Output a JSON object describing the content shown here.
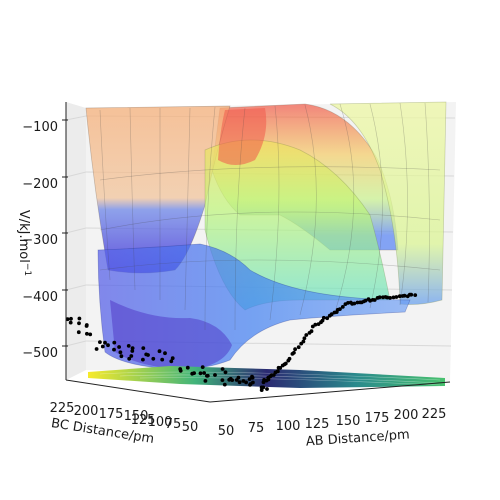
{
  "chart_data": {
    "type": "surface-3d",
    "xlabel": "AB Distance/pm",
    "ylabel": "BC Distance/pm",
    "zlabel": "V/kJ.mol$^{-1}$",
    "zlabel_display": "V/kJ.mol",
    "zlabel_superscript": "−1",
    "x_ticks": [
      "50",
      "75",
      "100",
      "125",
      "150",
      "175",
      "200",
      "225"
    ],
    "y_ticks": [
      "225",
      "200",
      "175",
      "150",
      "125",
      "100",
      "75",
      "50"
    ],
    "z_ticks": [
      "−100",
      "−200",
      "−300",
      "−400",
      "−500"
    ],
    "xlim": [
      50,
      235
    ],
    "ylim": [
      50,
      235
    ],
    "zlim": [
      -590,
      -80
    ],
    "colormap": "jet (translucent surface)",
    "contour_colormap": "viridis",
    "scatter_color": "#000000",
    "trajectory_approx": [
      {
        "x": 60,
        "y": 225,
        "z": -470
      },
      {
        "x": 70,
        "y": 200,
        "z": -520
      },
      {
        "x": 85,
        "y": 170,
        "z": -540
      },
      {
        "x": 100,
        "y": 130,
        "z": -560
      },
      {
        "x": 110,
        "y": 100,
        "z": -580
      },
      {
        "x": 120,
        "y": 90,
        "z": -575
      },
      {
        "x": 130,
        "y": 80,
        "z": -540
      },
      {
        "x": 150,
        "y": 75,
        "z": -470
      },
      {
        "x": 175,
        "y": 74,
        "z": -435
      },
      {
        "x": 200,
        "y": 74,
        "z": -430
      },
      {
        "x": 230,
        "y": 74,
        "z": -428
      }
    ]
  }
}
